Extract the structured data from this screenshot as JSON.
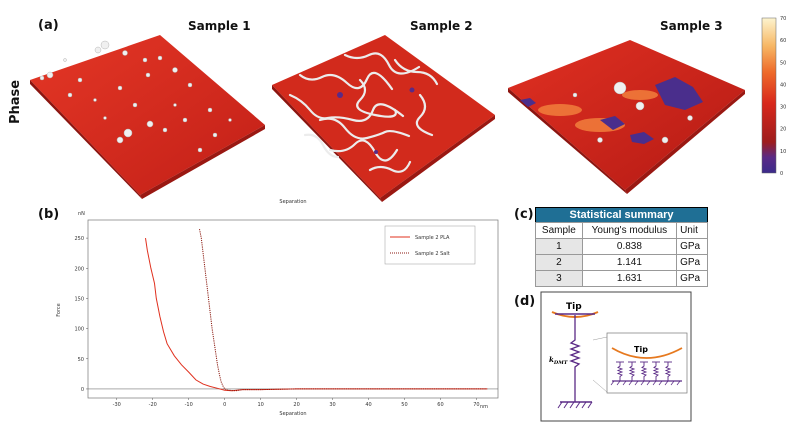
{
  "panels": {
    "a": "(a)",
    "b": "(b)",
    "c": "(c)",
    "d": "(d)"
  },
  "afm": {
    "phase_label": "Phase",
    "samples": [
      "Sample 1",
      "Sample 2",
      "Sample 3"
    ],
    "colorbar_ticks": [
      "70",
      "60",
      "50",
      "40",
      "30",
      "20",
      "10",
      "0"
    ],
    "colors": {
      "surface": "#d42b1e",
      "highlight": "#f2f2f2",
      "low": "#4a2e8c"
    }
  },
  "chart_data": {
    "type": "line",
    "title": "",
    "top_label": "Separation",
    "xlabel": "Separation",
    "ylabel": "Force",
    "x_unit": "nm",
    "y_unit": "nN",
    "xlim": [
      -38,
      76
    ],
    "ylim": [
      -15,
      280
    ],
    "xticks": [
      -30,
      -20,
      -10,
      0,
      10,
      20,
      30,
      40,
      50,
      60,
      70
    ],
    "yticks": [
      0,
      50,
      100,
      150,
      200,
      250
    ],
    "series": [
      {
        "name": "Sample 2 PLA",
        "color": "#e0301e",
        "dash": "solid",
        "x": [
          -22,
          -21.5,
          -20.5,
          -19.5,
          -19,
          -18,
          -17,
          -16,
          -14,
          -12,
          -10,
          -8,
          -6,
          -4,
          -2,
          0,
          2,
          5,
          10,
          20,
          40,
          60,
          73
        ],
        "y": [
          250,
          230,
          200,
          175,
          150,
          120,
          95,
          75,
          55,
          40,
          28,
          15,
          8,
          4,
          1,
          -2,
          -3,
          -1,
          -1,
          0,
          0,
          0,
          0
        ]
      },
      {
        "name": "Sample 2 Salt",
        "color": "#8b1a10",
        "dash": "dotted",
        "x": [
          -7,
          -6.5,
          -6,
          -5.5,
          -5,
          -4.5,
          -4,
          -3.5,
          -3,
          -2.5,
          -2,
          -1.5,
          -1,
          -0.5,
          0,
          1,
          3,
          5,
          10,
          20,
          40,
          60,
          73
        ],
        "y": [
          265,
          250,
          225,
          200,
          175,
          150,
          125,
          100,
          80,
          60,
          40,
          25,
          12,
          5,
          0,
          -2,
          -3,
          -1,
          -1,
          0,
          0,
          0,
          0
        ]
      }
    ]
  },
  "stats": {
    "title": "Statistical summary",
    "headers": [
      "Sample",
      "Young's modulus",
      "Unit"
    ],
    "rows": [
      [
        "1",
        "0.838",
        "GPa"
      ],
      [
        "2",
        "1.141",
        "GPa"
      ],
      [
        "3",
        "1.631",
        "GPa"
      ]
    ]
  },
  "model": {
    "tip_label": "Tip",
    "inset_tip_label": "Tip",
    "spring_label": "k",
    "spring_sub": "DMT"
  }
}
